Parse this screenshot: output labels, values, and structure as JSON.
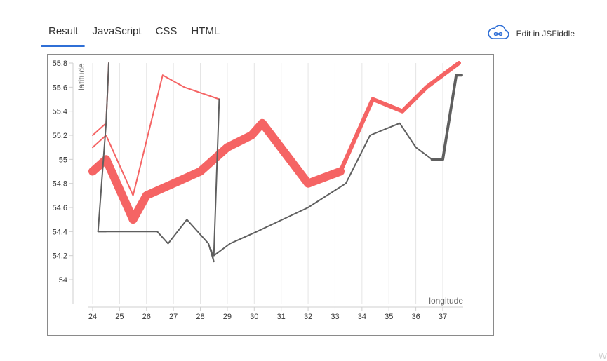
{
  "tabs": [
    {
      "label": "Result",
      "active": true
    },
    {
      "label": "JavaScript",
      "active": false
    },
    {
      "label": "CSS",
      "active": false
    },
    {
      "label": "HTML",
      "active": false
    }
  ],
  "edit": {
    "label": "Edit in JSFiddle",
    "icon": "cloud-infinity-icon"
  },
  "colors": {
    "red": "#f56464",
    "dark": "#5f5f5f",
    "accent": "#2f6fd6",
    "grid": "#e4e4e4"
  },
  "chart_data": {
    "type": "line",
    "title": "",
    "xlabel": "longitude",
    "ylabel": "latitude",
    "xlim": [
      23.9,
      37.8
    ],
    "ylim": [
      53.85,
      55.8
    ],
    "x_ticks": [
      24,
      25,
      26,
      27,
      28,
      29,
      30,
      31,
      32,
      33,
      34,
      35,
      36,
      37
    ],
    "y_ticks": [
      54,
      54.2,
      54.4,
      54.6,
      54.8,
      55,
      55.2,
      55.4,
      55.6,
      55.8
    ],
    "y_tick_labels": [
      "54",
      "54.2",
      "54.4",
      "54.6",
      "54.8",
      "55",
      "55.2",
      "55.4",
      "55.6",
      "55.8"
    ],
    "grid": "vertical",
    "series": [
      {
        "color": "#f56464",
        "width": 2,
        "points": [
          [
            24,
            55.2
          ],
          [
            24.5,
            55.3
          ],
          [
            24.6,
            55.8
          ]
        ]
      },
      {
        "color": "#f56464",
        "width": 2,
        "points": [
          [
            24,
            55.1
          ],
          [
            24.5,
            55.2
          ],
          [
            25.5,
            54.7
          ],
          [
            26.6,
            55.7
          ],
          [
            27.4,
            55.6
          ],
          [
            28.7,
            55.5
          ]
        ]
      },
      {
        "color": "#f56464",
        "width": 12,
        "points": [
          [
            24,
            54.9
          ],
          [
            24.5,
            55
          ],
          [
            25.5,
            54.5
          ],
          [
            26,
            54.7
          ],
          [
            27,
            54.8
          ],
          [
            28,
            54.9
          ],
          [
            29,
            55.1
          ],
          [
            29.9,
            55.2
          ],
          [
            30.3,
            55.3
          ],
          [
            32,
            54.8
          ],
          [
            33.2,
            54.9
          ],
          [
            33.2,
            54.9
          ]
        ]
      },
      {
        "color": "#f56464",
        "width": 6,
        "points": [
          [
            33.2,
            54.9
          ],
          [
            34.4,
            55.5
          ],
          [
            35.5,
            55.4
          ],
          [
            36.4,
            55.6
          ],
          [
            37.6,
            55.8
          ]
        ]
      },
      {
        "color": "#5f5f5f",
        "width": 2,
        "points": [
          [
            24.6,
            55.8
          ],
          [
            24.5,
            55.3
          ],
          [
            24.2,
            54.4
          ],
          [
            26.4,
            54.4
          ],
          [
            26.8,
            54.3
          ],
          [
            27.5,
            54.5
          ],
          [
            28.3,
            54.3
          ],
          [
            28.5,
            54.15
          ],
          [
            28.4,
            54.25
          ]
        ]
      },
      {
        "color": "#5f5f5f",
        "width": 2,
        "points": [
          [
            24.2,
            54.4
          ],
          [
            24.5,
            54.4
          ]
        ]
      },
      {
        "color": "#5f5f5f",
        "width": 2,
        "points": [
          [
            28.7,
            55.5
          ],
          [
            28.5,
            54.2
          ],
          [
            29.1,
            54.3
          ],
          [
            30.1,
            54.4
          ],
          [
            32,
            54.6
          ],
          [
            33.4,
            54.8
          ],
          [
            34.3,
            55.2
          ],
          [
            35.4,
            55.3
          ],
          [
            36,
            55.1
          ],
          [
            36.6,
            55
          ],
          [
            37,
            55
          ]
        ]
      },
      {
        "color": "#5f5f5f",
        "width": 4,
        "points": [
          [
            36.6,
            55
          ],
          [
            37,
            55
          ],
          [
            37.5,
            55.7
          ],
          [
            37.7,
            55.7
          ]
        ]
      }
    ]
  },
  "corner_mark": "W"
}
